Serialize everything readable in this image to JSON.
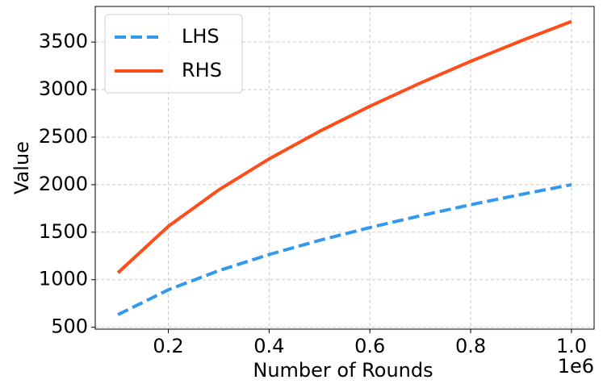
{
  "chart_data": {
    "type": "line",
    "x_label": "Number of Rounds",
    "y_label": "Value",
    "x_offset_label": "1e6",
    "x": [
      100000,
      200000,
      300000,
      400000,
      500000,
      600000,
      700000,
      800000,
      900000,
      1000000
    ],
    "series": [
      {
        "name": "LHS",
        "color": "#3399ee",
        "dashed": true,
        "values": [
          632,
          894,
          1095,
          1265,
          1414,
          1549,
          1673,
          1789,
          1897,
          2000
        ]
      },
      {
        "name": "RHS",
        "color": "#ff4d1a",
        "dashed": false,
        "values": [
          1073,
          1562,
          1945,
          2271,
          2561,
          2825,
          3069,
          3298,
          3513,
          3717
        ]
      }
    ],
    "xlim": [
      55000,
      1045000
    ],
    "xticks": [
      {
        "value": 200000,
        "label": "0.2"
      },
      {
        "value": 400000,
        "label": "0.4"
      },
      {
        "value": 600000,
        "label": "0.6"
      },
      {
        "value": 800000,
        "label": "0.8"
      },
      {
        "value": 1000000,
        "label": "1.0"
      }
    ],
    "ylim": [
      480,
      3875
    ],
    "yticks": [
      500,
      1000,
      1500,
      2000,
      2500,
      3000,
      3500
    ],
    "grid": true,
    "legend": "upper-left"
  }
}
